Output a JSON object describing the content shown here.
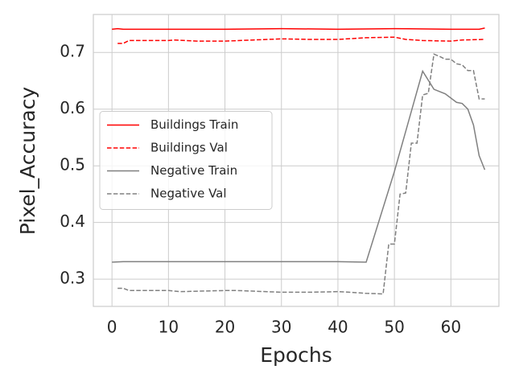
{
  "chart_data": {
    "type": "line",
    "xlabel": "Epochs",
    "ylabel": "Pixel_Accuracy",
    "xlim": [
      -3.3,
      68.5
    ],
    "ylim": [
      0.252,
      0.767
    ],
    "xticks": [
      0,
      10,
      20,
      30,
      40,
      50,
      60
    ],
    "yticks": [
      0.3,
      0.4,
      0.5,
      0.6,
      0.7
    ],
    "grid": true,
    "legend": "center left",
    "series": [
      {
        "name": "Buildings Train",
        "color": "#ff0000",
        "dash": false,
        "x": [
          0,
          1,
          2,
          10,
          20,
          30,
          40,
          50,
          60,
          65,
          66
        ],
        "values": [
          0.741,
          0.742,
          0.741,
          0.741,
          0.741,
          0.742,
          0.741,
          0.742,
          0.741,
          0.741,
          0.743
        ]
      },
      {
        "name": "Buildings Val",
        "color": "#ff0000",
        "dash": true,
        "x": [
          1,
          2,
          3,
          10,
          11,
          15,
          20,
          25,
          30,
          35,
          40,
          45,
          50,
          52,
          55,
          60,
          62,
          66
        ],
        "values": [
          0.716,
          0.716,
          0.721,
          0.721,
          0.722,
          0.72,
          0.72,
          0.722,
          0.724,
          0.723,
          0.723,
          0.726,
          0.727,
          0.723,
          0.721,
          0.72,
          0.722,
          0.723
        ]
      },
      {
        "name": "Negative Train",
        "color": "#808080",
        "dash": false,
        "x": [
          0,
          2,
          10,
          20,
          30,
          40,
          45,
          50,
          55,
          57,
          59,
          61,
          62,
          63,
          64,
          65,
          66
        ],
        "values": [
          0.33,
          0.331,
          0.331,
          0.331,
          0.331,
          0.331,
          0.33,
          0.49,
          0.667,
          0.635,
          0.627,
          0.612,
          0.61,
          0.6,
          0.572,
          0.518,
          0.493
        ]
      },
      {
        "name": "Negative Val",
        "color": "#808080",
        "dash": true,
        "x": [
          1,
          2,
          3,
          10,
          12,
          20,
          22,
          30,
          35,
          40,
          42,
          45,
          48,
          49,
          50,
          51,
          52,
          53,
          54,
          55,
          56,
          57,
          58,
          59,
          60,
          61,
          62,
          63,
          64,
          65,
          66
        ],
        "values": [
          0.284,
          0.284,
          0.28,
          0.28,
          0.278,
          0.28,
          0.28,
          0.277,
          0.277,
          0.278,
          0.277,
          0.275,
          0.274,
          0.362,
          0.362,
          0.45,
          0.452,
          0.54,
          0.54,
          0.625,
          0.628,
          0.697,
          0.693,
          0.688,
          0.688,
          0.68,
          0.678,
          0.668,
          0.668,
          0.618,
          0.618
        ]
      }
    ]
  }
}
